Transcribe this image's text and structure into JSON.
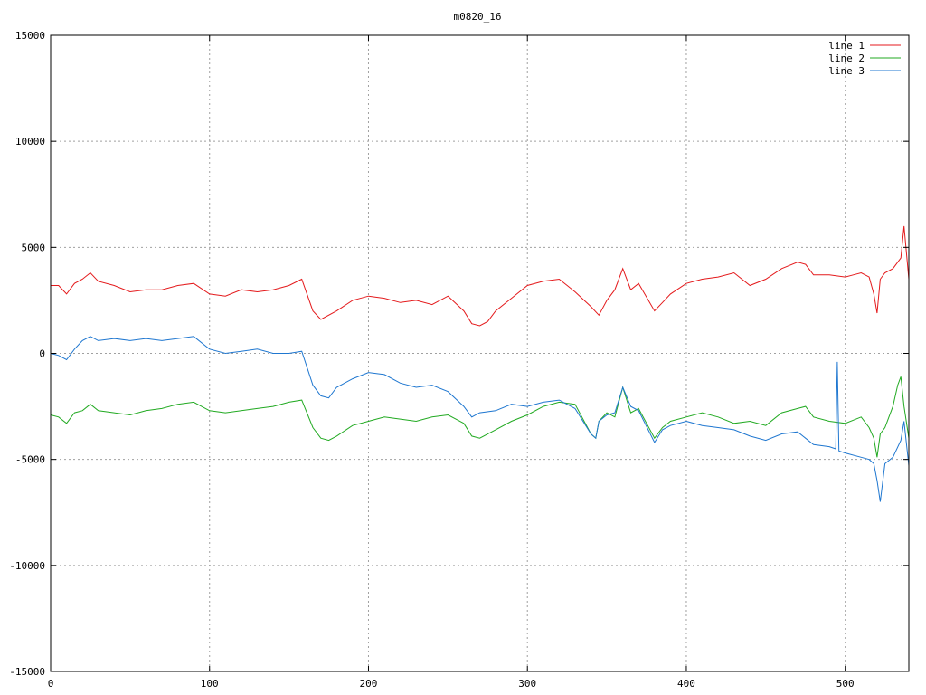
{
  "chart_data": {
    "type": "line",
    "title": "m0820_16",
    "xlabel": "",
    "ylabel": "",
    "xlim": [
      0,
      540
    ],
    "ylim": [
      -15000,
      15000
    ],
    "xticks": [
      0,
      100,
      200,
      300,
      400,
      500
    ],
    "yticks": [
      -15000,
      -10000,
      -5000,
      0,
      5000,
      10000,
      15000
    ],
    "grid": true,
    "legend_position": "top-right",
    "series": [
      {
        "name": "line 1",
        "color": "#e41a1c",
        "x": [
          0,
          5,
          10,
          15,
          20,
          25,
          30,
          40,
          50,
          60,
          70,
          80,
          90,
          100,
          110,
          120,
          130,
          140,
          150,
          158,
          165,
          170,
          180,
          190,
          200,
          210,
          220,
          230,
          240,
          250,
          260,
          265,
          270,
          275,
          280,
          290,
          300,
          310,
          320,
          325,
          330,
          340,
          345,
          350,
          355,
          360,
          365,
          370,
          380,
          385,
          390,
          400,
          410,
          420,
          430,
          440,
          450,
          460,
          470,
          475,
          480,
          490,
          500,
          505,
          510,
          515,
          518,
          520,
          522,
          525,
          530,
          535,
          537,
          540
        ],
        "y": [
          3200,
          3200,
          2800,
          3300,
          3500,
          3800,
          3400,
          3200,
          2900,
          3000,
          3000,
          3200,
          3300,
          2800,
          2700,
          3000,
          2900,
          3000,
          3200,
          3500,
          2000,
          1600,
          2000,
          2500,
          2700,
          2600,
          2400,
          2500,
          2300,
          2700,
          2000,
          1400,
          1300,
          1500,
          2000,
          2600,
          3200,
          3400,
          3500,
          3200,
          2900,
          2200,
          1800,
          2500,
          3000,
          4000,
          3000,
          3300,
          2000,
          2400,
          2800,
          3300,
          3500,
          3600,
          3800,
          3200,
          3500,
          4000,
          4300,
          4200,
          3700,
          3700,
          3600,
          3700,
          3800,
          3600,
          2800,
          1900,
          3500,
          3800,
          4000,
          4500,
          6000,
          3500
        ]
      },
      {
        "name": "line 2",
        "color": "#22aa22",
        "x": [
          0,
          5,
          10,
          15,
          20,
          25,
          30,
          40,
          50,
          60,
          70,
          80,
          90,
          100,
          110,
          120,
          130,
          140,
          150,
          158,
          165,
          170,
          175,
          180,
          190,
          200,
          210,
          220,
          230,
          240,
          250,
          260,
          265,
          270,
          280,
          290,
          300,
          310,
          320,
          330,
          340,
          343,
          345,
          350,
          355,
          360,
          365,
          370,
          380,
          385,
          390,
          400,
          410,
          420,
          430,
          440,
          450,
          460,
          470,
          475,
          480,
          490,
          500,
          510,
          515,
          518,
          520,
          522,
          525,
          530,
          533,
          535,
          537,
          540
        ],
        "y": [
          -2900,
          -3000,
          -3300,
          -2800,
          -2700,
          -2400,
          -2700,
          -2800,
          -2900,
          -2700,
          -2600,
          -2400,
          -2300,
          -2700,
          -2800,
          -2700,
          -2600,
          -2500,
          -2300,
          -2200,
          -3500,
          -4000,
          -4100,
          -3900,
          -3400,
          -3200,
          -3000,
          -3100,
          -3200,
          -3000,
          -2900,
          -3300,
          -3900,
          -4000,
          -3600,
          -3200,
          -2900,
          -2500,
          -2300,
          -2400,
          -3800,
          -4000,
          -3200,
          -2800,
          -3000,
          -1600,
          -2800,
          -2600,
          -4000,
          -3500,
          -3200,
          -3000,
          -2800,
          -3000,
          -3300,
          -3200,
          -3400,
          -2800,
          -2600,
          -2500,
          -3000,
          -3200,
          -3300,
          -3000,
          -3500,
          -4000,
          -4900,
          -3800,
          -3500,
          -2500,
          -1500,
          -1100,
          -2500,
          -4000
        ]
      },
      {
        "name": "line 3",
        "color": "#1f77d0",
        "x": [
          0,
          5,
          10,
          15,
          20,
          25,
          30,
          40,
          50,
          60,
          70,
          80,
          90,
          100,
          110,
          120,
          130,
          140,
          150,
          158,
          165,
          170,
          175,
          180,
          190,
          200,
          210,
          220,
          230,
          240,
          250,
          260,
          265,
          270,
          280,
          290,
          300,
          310,
          320,
          330,
          340,
          343,
          345,
          350,
          355,
          360,
          365,
          370,
          380,
          385,
          390,
          400,
          410,
          420,
          430,
          440,
          450,
          460,
          470,
          480,
          490,
          494,
          495,
          496,
          500,
          510,
          515,
          518,
          520,
          522,
          525,
          530,
          535,
          537,
          540
        ],
        "y": [
          0,
          -100,
          -300,
          200,
          600,
          800,
          600,
          700,
          600,
          700,
          600,
          700,
          800,
          200,
          0,
          100,
          200,
          0,
          0,
          100,
          -1500,
          -2000,
          -2100,
          -1600,
          -1200,
          -900,
          -1000,
          -1400,
          -1600,
          -1500,
          -1800,
          -2500,
          -3000,
          -2800,
          -2700,
          -2400,
          -2500,
          -2300,
          -2200,
          -2600,
          -3800,
          -4000,
          -3200,
          -2900,
          -2800,
          -1600,
          -2500,
          -2700,
          -4200,
          -3600,
          -3400,
          -3200,
          -3400,
          -3500,
          -3600,
          -3900,
          -4100,
          -3800,
          -3700,
          -4300,
          -4400,
          -4500,
          -400,
          -4600,
          -4700,
          -4900,
          -5000,
          -5200,
          -6000,
          -7000,
          -5200,
          -4900,
          -4100,
          -3200,
          -5300
        ]
      }
    ]
  }
}
